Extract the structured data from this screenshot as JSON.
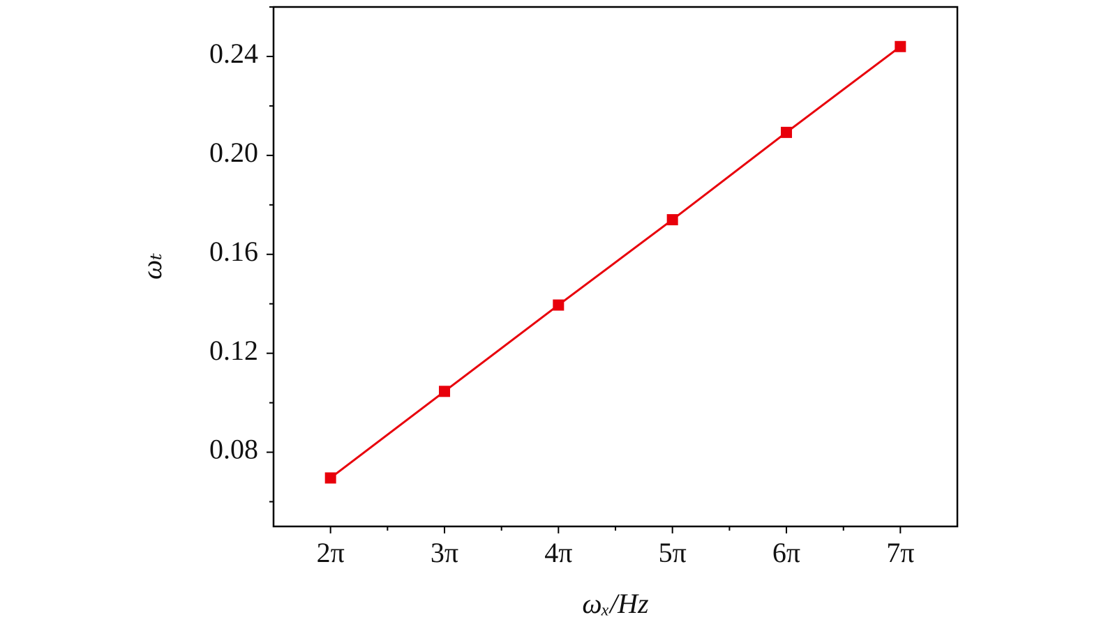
{
  "chart_data": {
    "type": "line",
    "x_label": "ωₓ/Hz",
    "y_label": "ωₜ",
    "x": [
      6.283,
      9.425,
      12.566,
      15.708,
      18.85,
      21.991
    ],
    "series": [
      {
        "color": "#e8000b",
        "values": [
          0.0696,
          0.1046,
          0.1395,
          0.174,
          0.2093,
          0.244
        ]
      }
    ],
    "xlim": [
      4.712,
      23.562
    ],
    "xticks": [
      {
        "value": 6.283,
        "label": "2π"
      },
      {
        "value": 9.425,
        "label": "3π"
      },
      {
        "value": 12.566,
        "label": "4π"
      },
      {
        "value": 15.708,
        "label": "5π"
      },
      {
        "value": 18.85,
        "label": "6π"
      },
      {
        "value": 21.991,
        "label": "7π"
      }
    ],
    "ylim": [
      0.05,
      0.26
    ],
    "yticks": [
      {
        "value": 0.08,
        "label": "0.08"
      },
      {
        "value": 0.12,
        "label": "0.12"
      },
      {
        "value": 0.16,
        "label": "0.16"
      },
      {
        "value": 0.2,
        "label": "0.20"
      },
      {
        "value": 0.24,
        "label": "0.24"
      }
    ],
    "grid": false
  }
}
